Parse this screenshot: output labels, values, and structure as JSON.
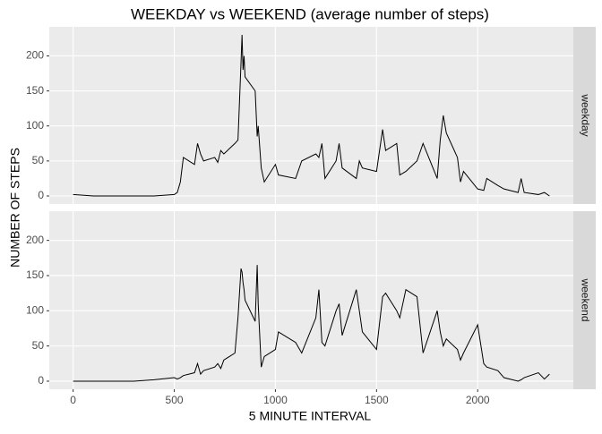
{
  "chart_data": {
    "type": "line",
    "title": "WEEKDAY vs WEEKEND (average number of steps)",
    "xlabel": "5 MINUTE INTERVAL",
    "ylabel": "NUMBER OF STEPS",
    "x": [
      0,
      100,
      200,
      300,
      400,
      500,
      515,
      530,
      545,
      600,
      615,
      630,
      645,
      700,
      715,
      730,
      745,
      800,
      815,
      830,
      835,
      840,
      845,
      850,
      900,
      910,
      915,
      930,
      945,
      1000,
      1015,
      1100,
      1130,
      1200,
      1215,
      1230,
      1245,
      1300,
      1315,
      1330,
      1400,
      1415,
      1430,
      1500,
      1530,
      1545,
      1600,
      1615,
      1645,
      1700,
      1730,
      1800,
      1815,
      1830,
      1845,
      1900,
      1915,
      1930,
      2000,
      2030,
      2045,
      2100,
      2130,
      2200,
      2215,
      2230,
      2300,
      2330,
      2355
    ],
    "series": [
      {
        "name": "weekday",
        "color": "#000000",
        "values": [
          2,
          0,
          0,
          0,
          0,
          2,
          5,
          20,
          55,
          45,
          75,
          60,
          50,
          55,
          48,
          65,
          60,
          75,
          80,
          190,
          230,
          180,
          200,
          170,
          150,
          85,
          100,
          40,
          20,
          45,
          30,
          25,
          50,
          60,
          55,
          75,
          25,
          50,
          75,
          40,
          25,
          50,
          40,
          35,
          95,
          65,
          75,
          30,
          35,
          50,
          75,
          25,
          80,
          115,
          90,
          55,
          20,
          35,
          10,
          8,
          25,
          15,
          10,
          5,
          25,
          5,
          2,
          5,
          0
        ]
      },
      {
        "name": "weekend",
        "color": "#000000",
        "values": [
          0,
          0,
          0,
          0,
          2,
          5,
          3,
          5,
          8,
          12,
          25,
          10,
          15,
          20,
          25,
          18,
          30,
          40,
          90,
          160,
          155,
          140,
          130,
          115,
          85,
          165,
          110,
          20,
          35,
          45,
          70,
          55,
          40,
          90,
          130,
          55,
          50,
          100,
          110,
          65,
          130,
          100,
          70,
          45,
          120,
          125,
          100,
          90,
          130,
          120,
          40,
          100,
          70,
          50,
          60,
          45,
          30,
          40,
          80,
          25,
          20,
          15,
          5,
          0,
          2,
          5,
          12,
          3,
          10
        ]
      }
    ],
    "xlim": [
      -118,
      2473
    ],
    "xticks": [
      0,
      500,
      1000,
      1500,
      2000
    ],
    "ylim": [
      -11.5,
      241.5
    ],
    "yticks": [
      0,
      50,
      100,
      150,
      200
    ],
    "grid": true
  }
}
